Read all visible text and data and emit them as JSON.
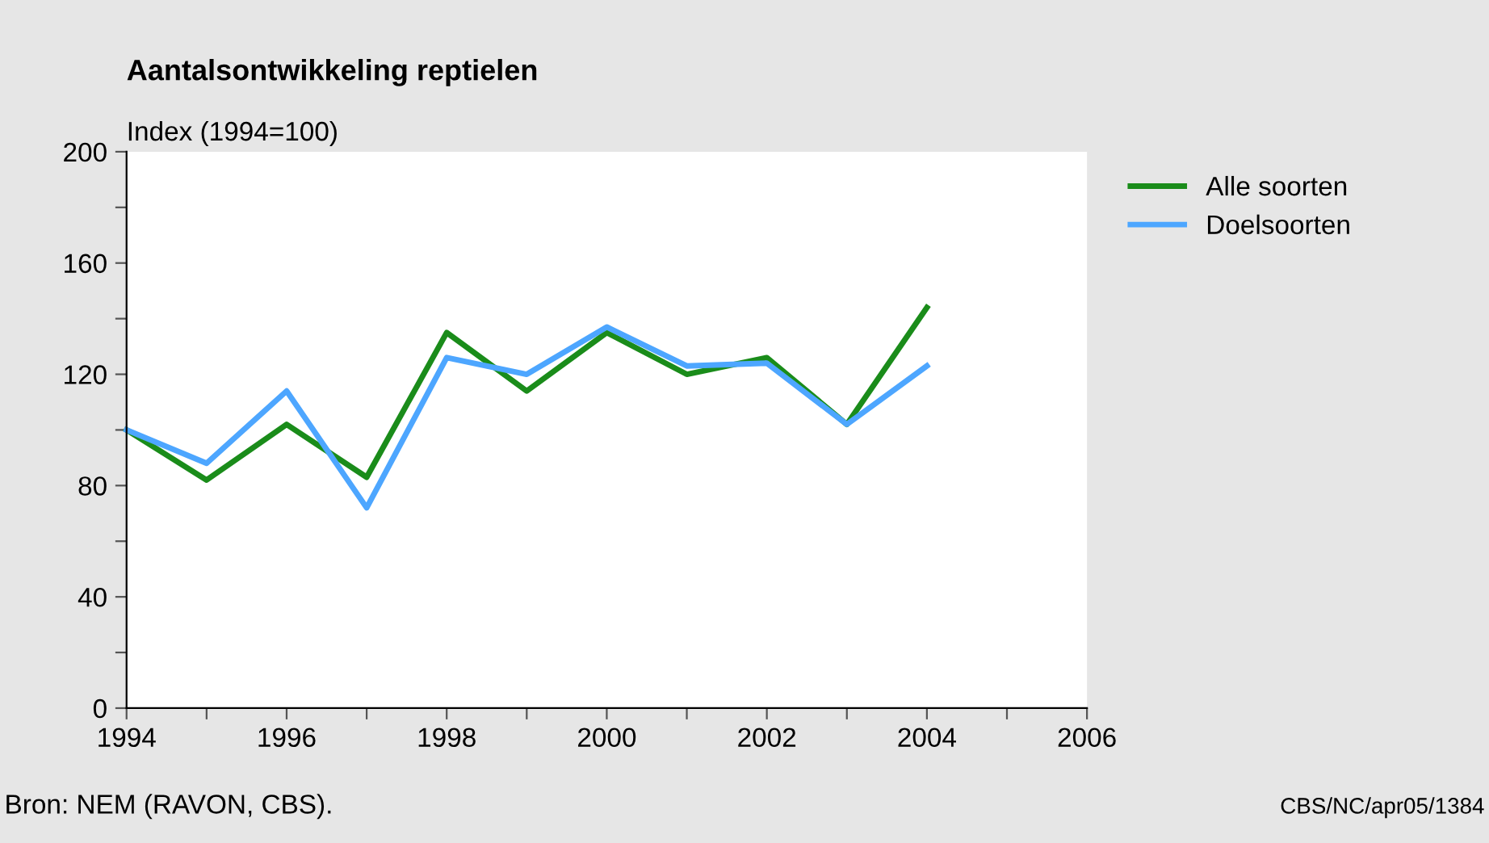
{
  "chart_data": {
    "type": "line",
    "title": "Aantalsontwikkeling reptielen",
    "ylabel": "Index (1994=100)",
    "x": [
      1994,
      1995,
      1996,
      1997,
      1998,
      1999,
      2000,
      2001,
      2002,
      2003,
      2004
    ],
    "series": [
      {
        "name": "Alle soorten",
        "color": "#1a8c1a",
        "values": [
          100,
          82,
          102,
          83,
          135,
          114,
          135,
          120,
          126,
          102,
          144
        ]
      },
      {
        "name": "Doelsoorten",
        "color": "#4da6ff",
        "values": [
          100,
          88,
          114,
          72,
          126,
          120,
          137,
          123,
          124,
          102,
          123
        ]
      }
    ],
    "xlim": [
      1994,
      2006
    ],
    "xticks": [
      1994,
      {
        "value": 1995,
        "label": null
      },
      1996,
      {
        "value": 1997,
        "label": null
      },
      1998,
      {
        "value": 1999,
        "label": null
      },
      2000,
      {
        "value": 2001,
        "label": null
      },
      2002,
      {
        "value": 2003,
        "label": null
      },
      2004,
      {
        "value": 2005,
        "label": null
      },
      2006
    ],
    "ylim": [
      0,
      200
    ],
    "yticks": [
      0,
      {
        "value": 20,
        "label": null
      },
      40,
      {
        "value": 60,
        "label": null
      },
      80,
      {
        "value": 100,
        "label": null
      },
      120,
      {
        "value": 140,
        "label": null
      },
      160,
      {
        "value": 180,
        "label": null
      },
      200
    ],
    "grid": false,
    "legend": "top right",
    "marker": "none",
    "line_style": "solid",
    "annotations": [
      "Bron: NEM (RAVON, CBS).",
      "CBS/NC/apr05/1384"
    ]
  }
}
